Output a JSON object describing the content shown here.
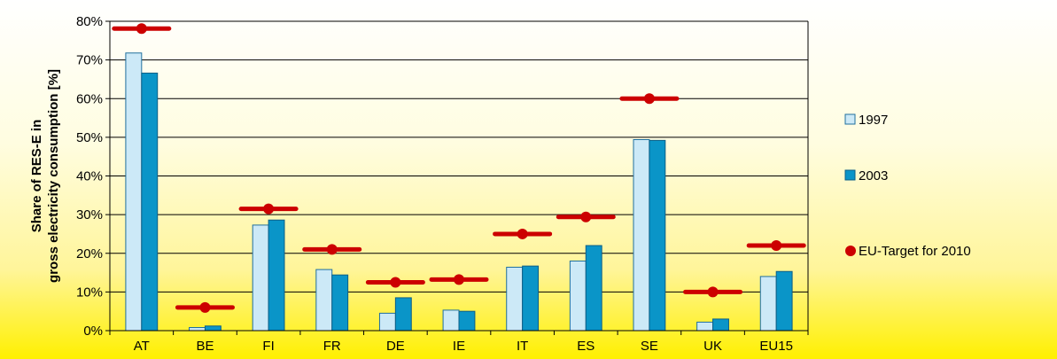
{
  "chart_data": {
    "type": "bar",
    "title": "",
    "xlabel": "",
    "ylabel": [
      "Share of RES-E in",
      "gross electricity consumption [%]"
    ],
    "categories": [
      "AT",
      "BE",
      "FI",
      "FR",
      "DE",
      "IE",
      "IT",
      "ES",
      "SE",
      "UK",
      "EU15"
    ],
    "series": [
      {
        "name": "1997",
        "kind": "bar",
        "color": "#cce9f7",
        "stroke": "#1f6f9e",
        "values": [
          71.8,
          0.8,
          27.3,
          15.8,
          4.5,
          5.3,
          16.4,
          18.0,
          49.4,
          2.2,
          14.0
        ]
      },
      {
        "name": "2003",
        "kind": "bar",
        "color": "#0a95c8",
        "stroke": "#0d5f86",
        "values": [
          66.6,
          1.2,
          28.6,
          14.4,
          8.5,
          5.0,
          16.7,
          22.0,
          49.2,
          3.0,
          15.3
        ]
      },
      {
        "name": "EU-Target for 2010",
        "kind": "marker",
        "color": "#cc0000",
        "values": [
          78.1,
          6.0,
          31.5,
          21.0,
          12.5,
          13.2,
          25.0,
          29.4,
          60.0,
          10.0,
          22.0
        ]
      }
    ],
    "ylim": [
      0,
      80
    ],
    "yticks": [
      "0%",
      "10%",
      "20%",
      "30%",
      "40%",
      "50%",
      "60%",
      "70%",
      "80%"
    ],
    "grid": true,
    "legend_position": "right"
  }
}
